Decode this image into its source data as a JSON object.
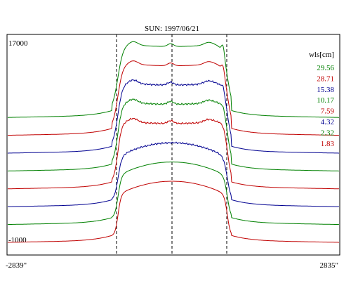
{
  "chart_data": {
    "type": "line",
    "title": "SUN: 1997/06/21",
    "x_range_labels": [
      "-2839\"",
      "2835\""
    ],
    "y_range_labels": [
      "17000",
      "-1000"
    ],
    "legend_title": "wls[cm]",
    "legend_position": "top-right",
    "grid": false,
    "reference_markers": "three dashed vertical lines (disk edges and center)",
    "series": [
      {
        "name": "29.56",
        "color": "#008000",
        "baseline_offset": 8
      },
      {
        "name": "28.71",
        "color": "#c00000",
        "baseline_offset": 7
      },
      {
        "name": "15.38",
        "color": "#000090",
        "baseline_offset": 6
      },
      {
        "name": "10.17",
        "color": "#008000",
        "baseline_offset": 5
      },
      {
        "name": "7.59",
        "color": "#c00000",
        "baseline_offset": 4
      },
      {
        "name": "4.32",
        "color": "#000090",
        "baseline_offset": 3
      },
      {
        "name": "2.32",
        "color": "#008000",
        "baseline_offset": 2
      },
      {
        "name": "1.83",
        "color": "#c00000",
        "baseline_offset": 1
      }
    ]
  }
}
